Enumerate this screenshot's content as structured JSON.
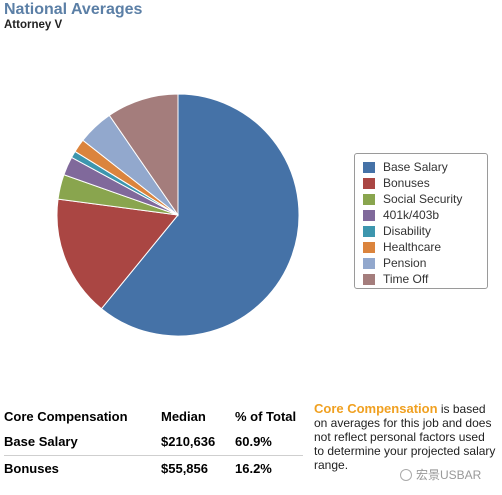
{
  "chart_data": {
    "type": "pie",
    "title": "National Averages",
    "subtitle": "Attorney V",
    "categories": [
      "Base Salary",
      "Bonuses",
      "Social Security",
      "401k/403b",
      "Disability",
      "Healthcare",
      "Pension",
      "Time Off"
    ],
    "values": [
      60.9,
      16.2,
      3.3,
      2.5,
      0.9,
      1.8,
      4.8,
      9.6
    ],
    "colors": [
      "#4572a7",
      "#aa4643",
      "#89a54e",
      "#80699b",
      "#3d96ae",
      "#db843d",
      "#92a8cd",
      "#a47d7c"
    ],
    "legend_position": "right"
  },
  "table": {
    "headers": [
      "Core Compensation",
      "Median",
      "% of Total"
    ],
    "rows": [
      [
        "Base Salary",
        "$210,636",
        "60.9%"
      ],
      [
        "Bonuses",
        "$55,856",
        "16.2%"
      ]
    ]
  },
  "note": {
    "title": "Core Compensation",
    "text": " is based on averages for this job and does not reflect personal factors used to determine your projected salary range."
  },
  "watermark": "宏景USBAR"
}
